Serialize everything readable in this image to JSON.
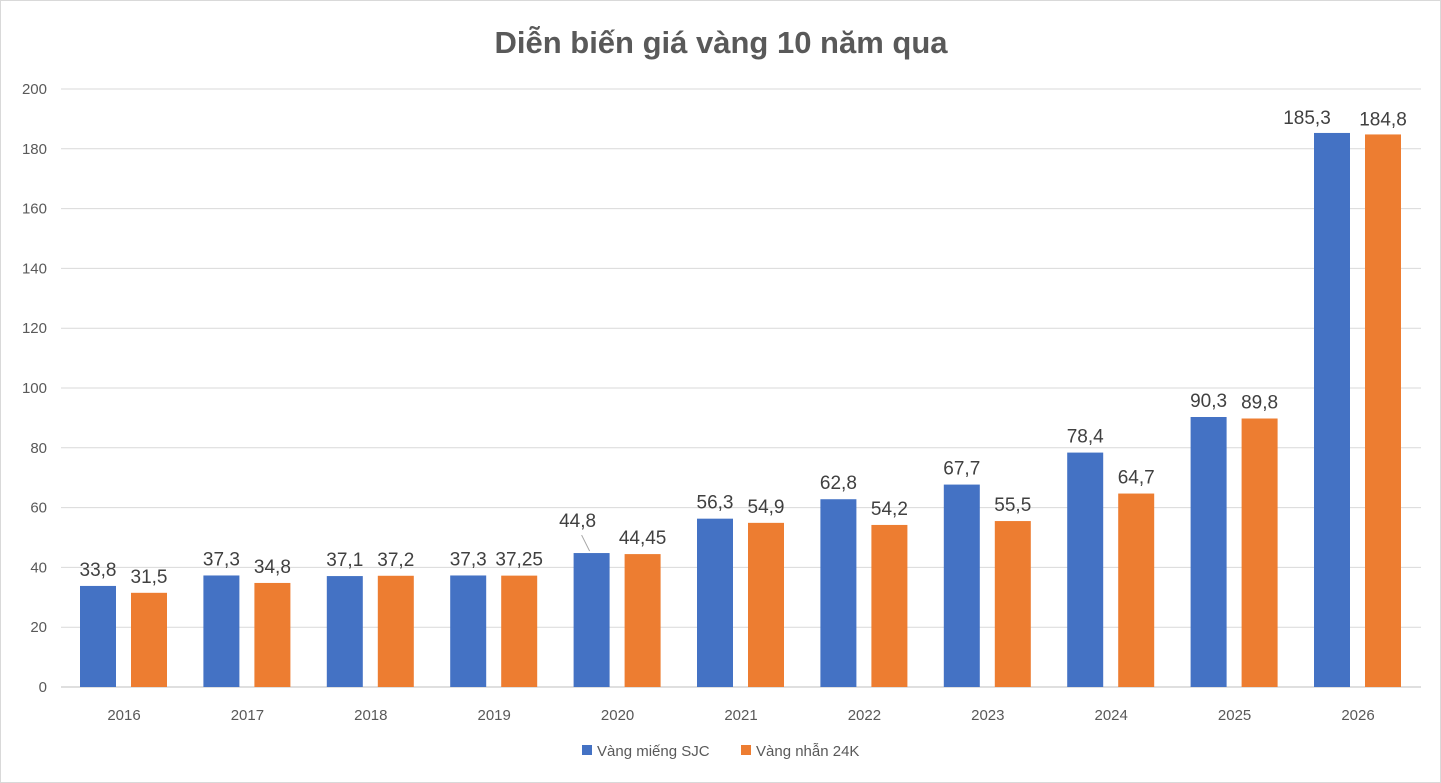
{
  "chart_data": {
    "type": "bar",
    "title": "Diễn biến giá vàng 10 năm qua",
    "xlabel": "",
    "ylabel": "",
    "categories": [
      "2016",
      "2017",
      "2018",
      "2019",
      "2020",
      "2021",
      "2022",
      "2023",
      "2024",
      "2025",
      "2026"
    ],
    "series": [
      {
        "name": "Vàng miếng SJC",
        "color": "#4472C4",
        "values": [
          33.8,
          37.3,
          37.1,
          37.3,
          44.8,
          56.3,
          62.8,
          67.7,
          78.4,
          90.3,
          185.3
        ],
        "labels": [
          "33,8",
          "37,3",
          "37,1",
          "37,3",
          "44,8",
          "56,3",
          "62,8",
          "67,7",
          "78,4",
          "90,3",
          "185,3"
        ]
      },
      {
        "name": "Vàng nhẫn 24K",
        "color": "#ED7D31",
        "values": [
          31.5,
          34.8,
          37.2,
          37.25,
          44.45,
          54.9,
          54.2,
          55.5,
          64.7,
          89.8,
          184.8
        ],
        "labels": [
          "31,5",
          "34,8",
          "37,2",
          "37,25",
          "44,45",
          "54,9",
          "54,2",
          "55,5",
          "64,7",
          "89,8",
          "184,8"
        ]
      }
    ],
    "ylim": [
      0,
      200
    ],
    "yticks": [
      "0",
      "20",
      "40",
      "60",
      "80",
      "100",
      "120",
      "140",
      "160",
      "180",
      "200"
    ],
    "grid": true,
    "legend": "bottom"
  }
}
